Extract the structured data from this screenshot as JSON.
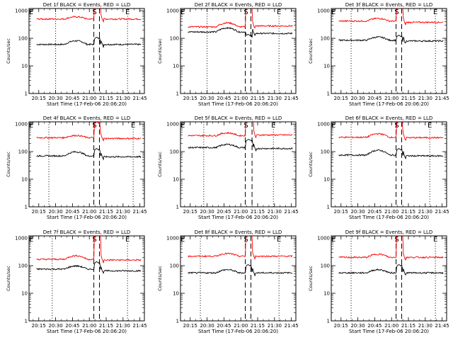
{
  "chart_data": [
    {
      "type": "line",
      "title": "Det 1f BLACK = Events, RED = LLD",
      "xlabel": "Start Time (17-Feb-06 20:06:20)",
      "ylabel": "Counts/sec",
      "xtick_labels": [
        "20:15",
        "20:30",
        "20:45",
        "21:00",
        "21:15",
        "21:30",
        "21:45"
      ],
      "ytick_labels": [
        "1",
        "10",
        "100",
        "1000"
      ],
      "annotations": {
        "start": "S",
        "end": "E"
      },
      "markers": {
        "s": "21:04",
        "e": "21:09",
        "dotted": "20:30",
        "end": "21:34"
      },
      "series": [
        {
          "color": "#000000",
          "level": 60,
          "bump": 1.35,
          "peak": 110,
          "after": 60
        },
        {
          "color": "#ff0000",
          "level": 500,
          "bump": 1.2,
          "peak": 3000,
          "after": 500
        }
      ]
    },
    {
      "type": "line",
      "title": "Det 2f BLACK = Events, RED = LLD",
      "xlabel": "Start Time (17-Feb-06 20:06:20)",
      "ylabel": "Counts/sec",
      "xtick_labels": [
        "20:15",
        "20:30",
        "20:45",
        "21:00",
        "21:15",
        "21:30",
        "21:45"
      ],
      "ytick_labels": [
        "1",
        "10",
        "100",
        "1000"
      ],
      "annotations": {
        "start": "S",
        "end": "E"
      },
      "markers": {
        "s": "21:04",
        "e": "21:09",
        "dotted": "20:30",
        "end": "21:34"
      },
      "series": [
        {
          "color": "#000000",
          "level": 170,
          "bump": 1.4,
          "peak": 140,
          "after": 150
        },
        {
          "color": "#ff0000",
          "level": 260,
          "bump": 1.4,
          "peak": 3000,
          "after": 280
        }
      ]
    },
    {
      "type": "line",
      "title": "Det 3f BLACK = Events, RED = LLD",
      "xlabel": "Start Time (17-Feb-06 20:06:20)",
      "ylabel": "Counts/sec",
      "xtick_labels": [
        "20:15",
        "20:30",
        "20:45",
        "21:00",
        "21:15",
        "21:30",
        "21:45"
      ],
      "ytick_labels": [
        "1",
        "10",
        "100",
        "1000"
      ],
      "annotations": {
        "start": "S",
        "end": "E"
      },
      "markers": {
        "s": "21:04",
        "e": "21:09",
        "dotted": "20:24",
        "end": "21:39"
      },
      "series": [
        {
          "color": "#000000",
          "level": 85,
          "bump": 1.3,
          "peak": 130,
          "after": 80
        },
        {
          "color": "#ff0000",
          "level": 420,
          "bump": 1.25,
          "peak": 3000,
          "after": 380
        }
      ]
    },
    {
      "type": "line",
      "title": "Det 4f BLACK = Events, RED = LLD",
      "xlabel": "Start Time (17-Feb-06 20:06:20)",
      "ylabel": "Counts/sec",
      "xtick_labels": [
        "20:15",
        "20:30",
        "20:45",
        "21:00",
        "21:15",
        "21:30",
        "21:45"
      ],
      "ytick_labels": [
        "1",
        "10",
        "100",
        "1000"
      ],
      "annotations": {
        "start": "S",
        "end": "E"
      },
      "markers": {
        "s": "21:04",
        "e": "21:09",
        "dotted": "20:24",
        "end": "21:39"
      },
      "series": [
        {
          "color": "#000000",
          "level": 70,
          "bump": 1.4,
          "peak": 130,
          "after": 65
        },
        {
          "color": "#ff0000",
          "level": 320,
          "bump": 1.2,
          "peak": 1200,
          "after": 300
        }
      ]
    },
    {
      "type": "line",
      "title": "Det 5f BLACK = Events, RED = LLD",
      "xlabel": "Start Time (17-Feb-06 20:06:20)",
      "ylabel": "Counts/sec",
      "xtick_labels": [
        "20:15",
        "20:30",
        "20:45",
        "21:00",
        "21:15",
        "21:30",
        "21:45"
      ],
      "ytick_labels": [
        "1",
        "10",
        "100",
        "1000"
      ],
      "annotations": {
        "start": "S",
        "end": "E"
      },
      "markers": {
        "s": "21:04",
        "e": "21:10",
        "dotted": "20:27",
        "end": "21:29"
      },
      "series": [
        {
          "color": "#000000",
          "level": 140,
          "bump": 1.3,
          "peak": 280,
          "after": 130
        },
        {
          "color": "#ff0000",
          "level": 380,
          "bump": 1.25,
          "peak": 5500,
          "after": 400
        }
      ]
    },
    {
      "type": "line",
      "title": "Det 6f BLACK = Events, RED = LLD",
      "xlabel": "Start Time (17-Feb-06 20:06:20)",
      "ylabel": "Counts/sec",
      "xtick_labels": [
        "20:15",
        "20:30",
        "20:45",
        "21:00",
        "21:15",
        "21:30",
        "21:45"
      ],
      "ytick_labels": [
        "1",
        "10",
        "100",
        "1000"
      ],
      "annotations": {
        "start": "S",
        "end": "E"
      },
      "markers": {
        "s": "21:04",
        "e": "21:09",
        "dotted": "20:24",
        "end": "21:34"
      },
      "series": [
        {
          "color": "#000000",
          "level": 75,
          "bump": 1.5,
          "peak": 130,
          "after": 70
        },
        {
          "color": "#ff0000",
          "level": 330,
          "bump": 1.35,
          "peak": 1500,
          "after": 320
        }
      ]
    },
    {
      "type": "line",
      "title": "Det 7f BLACK = Events, RED = LLD",
      "xlabel": "Start Time (17-Feb-06 20:06:20)",
      "ylabel": "Counts/sec",
      "xtick_labels": [
        "20:15",
        "20:30",
        "20:45",
        "21:00",
        "21:15",
        "21:30",
        "21:45"
      ],
      "ytick_labels": [
        "1",
        "10",
        "100",
        "1000"
      ],
      "annotations": {
        "start": "S",
        "end": "E"
      },
      "markers": {
        "s": "21:04",
        "e": "21:09",
        "dotted": "20:27",
        "end": "21:34"
      },
      "series": [
        {
          "color": "#000000",
          "level": 75,
          "bump": 1.3,
          "peak": 140,
          "after": 65
        },
        {
          "color": "#ff0000",
          "level": 170,
          "bump": 1.35,
          "peak": 3000,
          "after": 160
        }
      ]
    },
    {
      "type": "line",
      "title": "Det 8f BLACK = Events, RED = LLD",
      "xlabel": "Start Time (17-Feb-06 20:06:20)",
      "ylabel": "Counts/sec",
      "xtick_labels": [
        "20:15",
        "20:30",
        "20:45",
        "21:00",
        "21:15",
        "21:30",
        "21:45"
      ],
      "ytick_labels": [
        "1",
        "10",
        "100",
        "1000"
      ],
      "annotations": {
        "start": "S",
        "end": "E"
      },
      "markers": {
        "s": "21:04",
        "e": "21:09",
        "dotted": "20:24",
        "end": "21:34"
      },
      "series": [
        {
          "color": "#000000",
          "level": 55,
          "bump": 1.3,
          "peak": 110,
          "after": 55
        },
        {
          "color": "#ff0000",
          "level": 220,
          "bump": 1.25,
          "peak": 3000,
          "after": 220
        }
      ]
    },
    {
      "type": "line",
      "title": "Det 9f BLACK = Events, RED = LLD",
      "xlabel": "Start Time (17-Feb-06 20:06:20)",
      "ylabel": "Counts/sec",
      "xtick_labels": [
        "20:15",
        "20:30",
        "20:45",
        "21:00",
        "21:15",
        "21:30",
        "21:45"
      ],
      "ytick_labels": [
        "1",
        "10",
        "100",
        "1000"
      ],
      "annotations": {
        "start": "S",
        "end": "E"
      },
      "markers": {
        "s": "21:04",
        "e": "21:09",
        "dotted": "20:24",
        "end": "21:39"
      },
      "series": [
        {
          "color": "#000000",
          "level": 55,
          "bump": 1.3,
          "peak": 110,
          "after": 55
        },
        {
          "color": "#ff0000",
          "level": 200,
          "bump": 1.3,
          "peak": 3000,
          "after": 200
        }
      ]
    }
  ]
}
